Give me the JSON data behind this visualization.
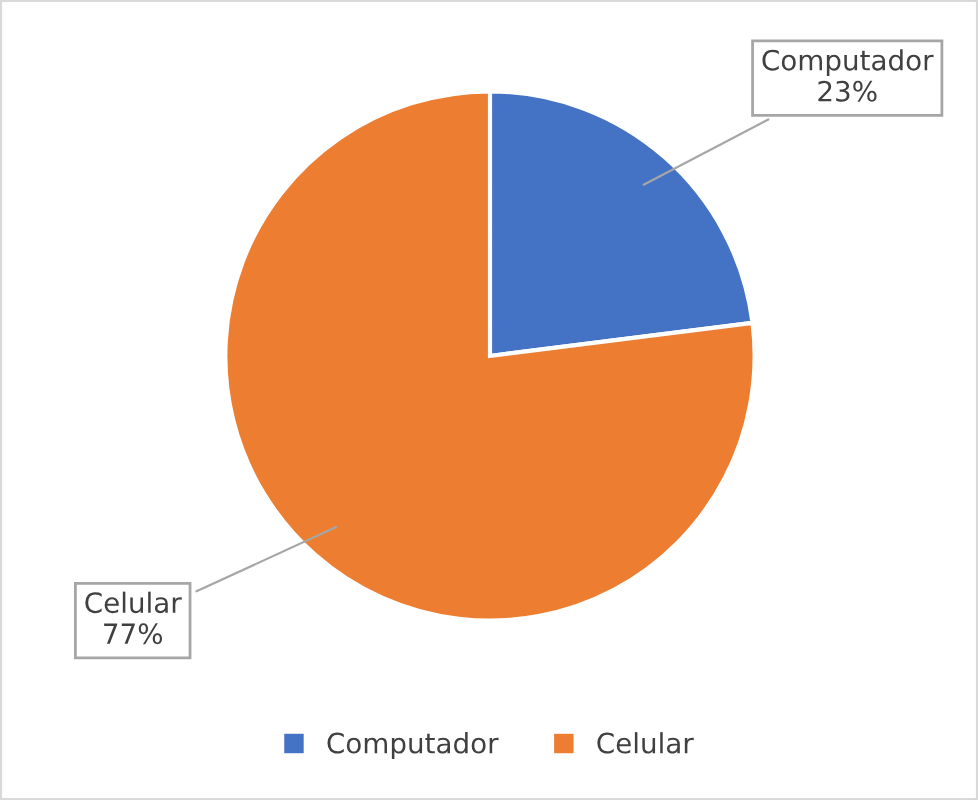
{
  "chart_data": {
    "type": "pie",
    "categories": [
      "Computador",
      "Celular"
    ],
    "values": [
      23,
      77
    ],
    "colors": [
      "#4472c4",
      "#ed7d31"
    ],
    "value_labels": [
      "Computador\n23%",
      "Celular\n77%"
    ],
    "legend": "bottom"
  }
}
